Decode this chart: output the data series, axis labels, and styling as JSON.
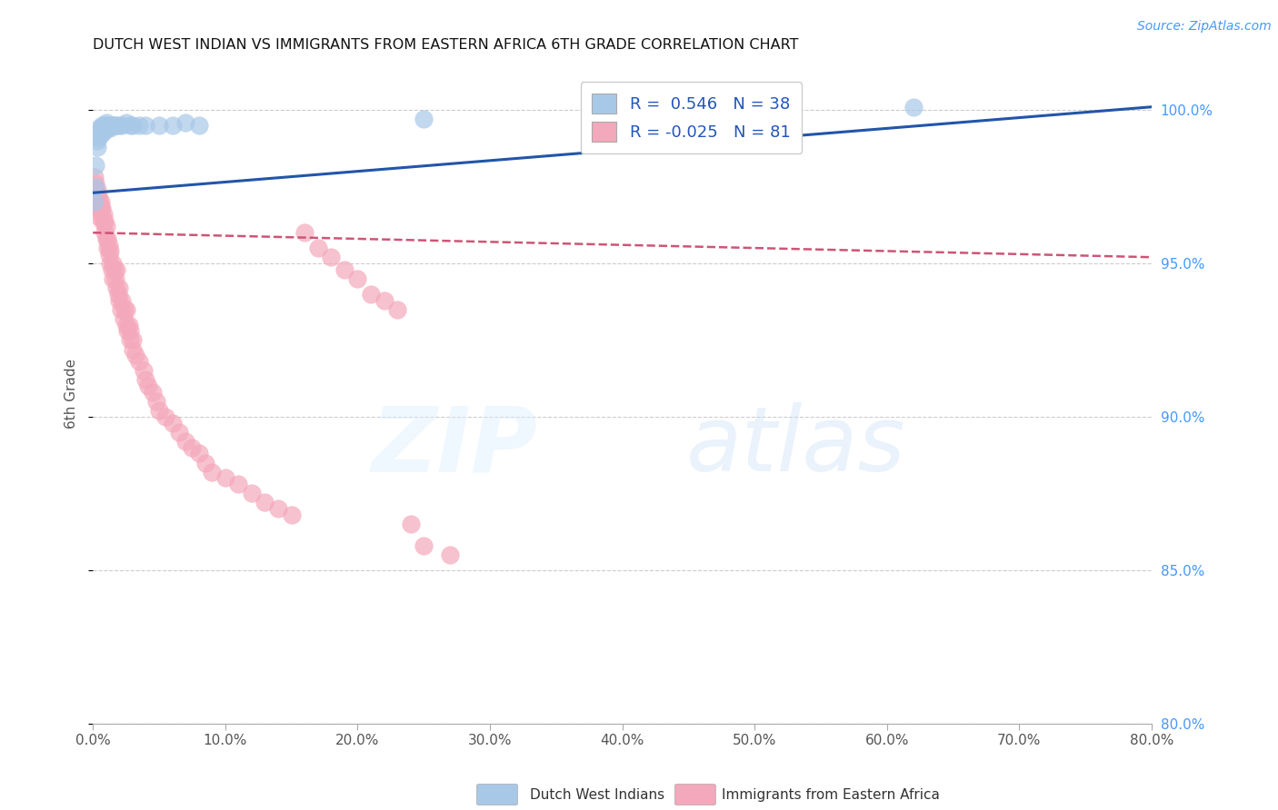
{
  "title": "DUTCH WEST INDIAN VS IMMIGRANTS FROM EASTERN AFRICA 6TH GRADE CORRELATION CHART",
  "source": "Source: ZipAtlas.com",
  "ylabel": "6th Grade",
  "blue_R": 0.546,
  "blue_N": 38,
  "pink_R": -0.025,
  "pink_N": 81,
  "legend_label_blue": "Dutch West Indians",
  "legend_label_pink": "Immigrants from Eastern Africa",
  "blue_color": "#a8c8e8",
  "pink_color": "#f4a8bb",
  "blue_line_color": "#2255aa",
  "pink_line_color": "#cc5577",
  "watermark_zip": "ZIP",
  "watermark_atlas": "atlas",
  "blue_scatter_x": [
    0.001,
    0.002,
    0.002,
    0.003,
    0.003,
    0.004,
    0.004,
    0.005,
    0.005,
    0.006,
    0.006,
    0.007,
    0.007,
    0.008,
    0.008,
    0.009,
    0.01,
    0.01,
    0.011,
    0.012,
    0.013,
    0.014,
    0.015,
    0.016,
    0.018,
    0.02,
    0.022,
    0.025,
    0.028,
    0.03,
    0.035,
    0.04,
    0.05,
    0.06,
    0.07,
    0.08,
    0.25,
    0.62
  ],
  "blue_scatter_y": [
    97.0,
    97.5,
    98.2,
    98.8,
    99.0,
    99.1,
    99.2,
    99.3,
    99.4,
    99.2,
    99.3,
    99.4,
    99.5,
    99.3,
    99.4,
    99.5,
    99.6,
    99.5,
    99.4,
    99.5,
    99.4,
    99.5,
    99.5,
    99.5,
    99.5,
    99.5,
    99.5,
    99.6,
    99.5,
    99.5,
    99.5,
    99.5,
    99.5,
    99.5,
    99.6,
    99.5,
    99.7,
    100.1
  ],
  "pink_scatter_x": [
    0.001,
    0.001,
    0.002,
    0.002,
    0.003,
    0.003,
    0.004,
    0.004,
    0.005,
    0.005,
    0.006,
    0.006,
    0.007,
    0.007,
    0.008,
    0.008,
    0.009,
    0.009,
    0.01,
    0.01,
    0.011,
    0.011,
    0.012,
    0.012,
    0.013,
    0.013,
    0.014,
    0.015,
    0.015,
    0.016,
    0.017,
    0.018,
    0.018,
    0.019,
    0.02,
    0.02,
    0.021,
    0.022,
    0.023,
    0.024,
    0.025,
    0.025,
    0.026,
    0.027,
    0.028,
    0.028,
    0.03,
    0.03,
    0.032,
    0.035,
    0.038,
    0.04,
    0.042,
    0.045,
    0.048,
    0.05,
    0.055,
    0.06,
    0.065,
    0.07,
    0.075,
    0.08,
    0.085,
    0.09,
    0.1,
    0.11,
    0.12,
    0.13,
    0.14,
    0.15,
    0.16,
    0.17,
    0.18,
    0.19,
    0.2,
    0.21,
    0.22,
    0.23,
    0.24,
    0.25,
    0.27
  ],
  "pink_scatter_y": [
    97.5,
    97.8,
    97.2,
    97.6,
    97.0,
    97.4,
    96.8,
    97.2,
    96.5,
    97.0,
    96.8,
    97.0,
    96.5,
    96.8,
    96.3,
    96.6,
    96.0,
    96.4,
    95.8,
    96.2,
    95.5,
    95.8,
    95.3,
    95.6,
    95.0,
    95.4,
    94.8,
    94.5,
    95.0,
    94.8,
    94.5,
    94.2,
    94.8,
    94.0,
    93.8,
    94.2,
    93.5,
    93.8,
    93.2,
    93.5,
    93.0,
    93.5,
    92.8,
    93.0,
    92.5,
    92.8,
    92.2,
    92.5,
    92.0,
    91.8,
    91.5,
    91.2,
    91.0,
    90.8,
    90.5,
    90.2,
    90.0,
    89.8,
    89.5,
    89.2,
    89.0,
    88.8,
    88.5,
    88.2,
    88.0,
    87.8,
    87.5,
    87.2,
    87.0,
    86.8,
    96.0,
    95.5,
    95.2,
    94.8,
    94.5,
    94.0,
    93.8,
    93.5,
    86.5,
    85.8,
    85.5
  ],
  "xlim": [
    0.0,
    0.8
  ],
  "ylim": [
    80.0,
    101.5
  ],
  "yticks": [
    80.0,
    85.0,
    90.0,
    95.0,
    100.0
  ],
  "xticks": [
    0.0,
    0.1,
    0.2,
    0.3,
    0.4,
    0.5,
    0.6,
    0.7,
    0.8
  ]
}
